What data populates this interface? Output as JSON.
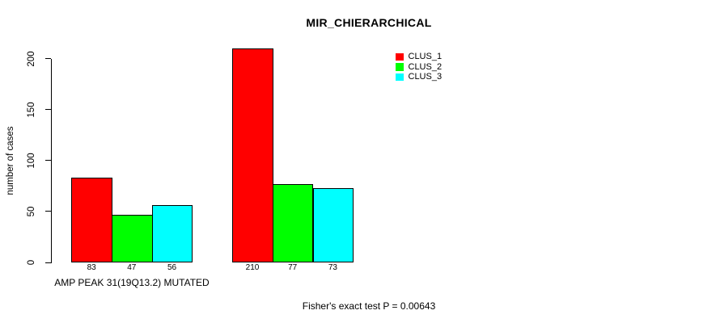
{
  "chart_data": {
    "type": "bar",
    "title": "MIR_CHIERARCHICAL",
    "ylabel": "number of cases",
    "xlabel": "",
    "categories": [
      "AMP PEAK 31(19Q13.2) MUTATED",
      ""
    ],
    "series": [
      {
        "name": "CLUS_1",
        "color": "#FF0000",
        "values": [
          83,
          210
        ]
      },
      {
        "name": "CLUS_2",
        "color": "#00FF00",
        "values": [
          47,
          77
        ]
      },
      {
        "name": "CLUS_3",
        "color": "#00FFFF",
        "values": [
          56,
          73
        ]
      }
    ],
    "bar_value_labels": [
      [
        83,
        47,
        56
      ],
      [
        210,
        77,
        73
      ]
    ],
    "yticks": [
      0,
      50,
      100,
      150,
      200
    ],
    "ylim": [
      0,
      210
    ],
    "grid": false,
    "legend_position": "top-right",
    "legend_entries": [
      "CLUS_1",
      "CLUS_2",
      "CLUS_3"
    ],
    "annotation": "Fisher's exact test P = 0.00643"
  }
}
